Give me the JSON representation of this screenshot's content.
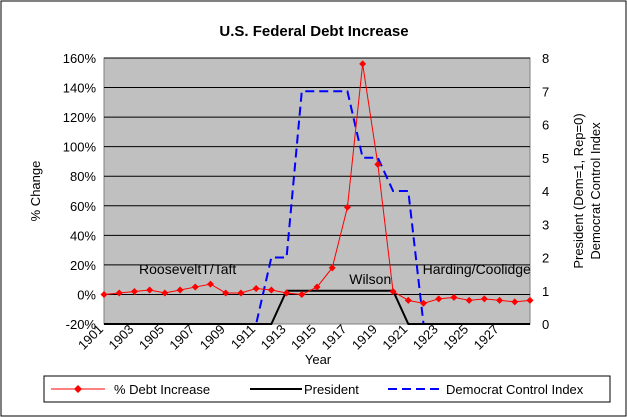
{
  "chart_data": {
    "type": "line",
    "title": "U.S. Federal Debt Increase",
    "xlabel": "Year",
    "ylabel": "% Change",
    "y2label_line1": "President (Dem=1, Rep=0)",
    "y2label_line2": "Democrat Control Index",
    "x": [
      1901,
      1902,
      1903,
      1904,
      1905,
      1906,
      1907,
      1908,
      1909,
      1910,
      1911,
      1912,
      1913,
      1914,
      1915,
      1916,
      1917,
      1918,
      1919,
      1920,
      1921,
      1922,
      1923,
      1924,
      1925,
      1926,
      1927,
      1928,
      1929
    ],
    "x_tick_labels": [
      "1901",
      "1903",
      "1905",
      "1907",
      "1909",
      "1911",
      "1913",
      "1915",
      "1917",
      "1919",
      "1921",
      "1923",
      "1925",
      "1927"
    ],
    "ylim": [
      -20,
      160
    ],
    "y_ticks": [
      -20,
      0,
      20,
      40,
      60,
      80,
      100,
      120,
      140,
      160
    ],
    "y_tick_labels": [
      "-20%",
      "0%",
      "20%",
      "40%",
      "60%",
      "80%",
      "100%",
      "120%",
      "140%",
      "160%"
    ],
    "y2lim": [
      0,
      8
    ],
    "y2_ticks": [
      0,
      1,
      2,
      3,
      4,
      5,
      6,
      7,
      8
    ],
    "y2_tick_labels": [
      "0",
      "1",
      "2",
      "3",
      "4",
      "5",
      "6",
      "7",
      "8"
    ],
    "grid": "horizontal",
    "legend_position": "bottom",
    "series": [
      {
        "name": "% Debt Increase",
        "axis": "left",
        "color": "#ff0000",
        "style": "solid-with-diamond-markers",
        "values": [
          0,
          1,
          2,
          3,
          1,
          3,
          5,
          7,
          1,
          1,
          4,
          3,
          1,
          0,
          5,
          18,
          59,
          156,
          88,
          2,
          -4,
          -6,
          -3,
          -2,
          -4,
          -3,
          -4,
          -5,
          -4
        ]
      },
      {
        "name": "President",
        "axis": "right",
        "color": "#000000",
        "style": "solid",
        "values": [
          0,
          0,
          0,
          0,
          0,
          0,
          0,
          0,
          0,
          0,
          0,
          0,
          1,
          1,
          1,
          1,
          1,
          1,
          1,
          1,
          0,
          0,
          0,
          0,
          0,
          0,
          0,
          0,
          0
        ]
      },
      {
        "name": "Democrat Control Index",
        "axis": "right",
        "color": "#0000ff",
        "style": "dashed",
        "values": [
          0,
          0,
          0,
          0,
          0,
          0,
          0,
          0,
          0,
          0,
          0,
          2,
          2,
          7,
          7,
          7,
          7,
          5,
          5,
          4,
          4,
          0,
          0,
          0,
          0,
          0,
          0,
          0,
          0
        ]
      }
    ],
    "annotations": [
      {
        "text": "RooseveltT/Taft",
        "x": 1906.5,
        "y": 1.5,
        "axis": "right"
      },
      {
        "text": "Wilson",
        "x": 1918.5,
        "y": 1.2,
        "axis": "right"
      },
      {
        "text": "Harding/Coolidge",
        "x": 1925.5,
        "y": 1.5,
        "axis": "right"
      }
    ],
    "colors": {
      "plot_background": "#c0c0c0",
      "grid": "#000000"
    }
  }
}
